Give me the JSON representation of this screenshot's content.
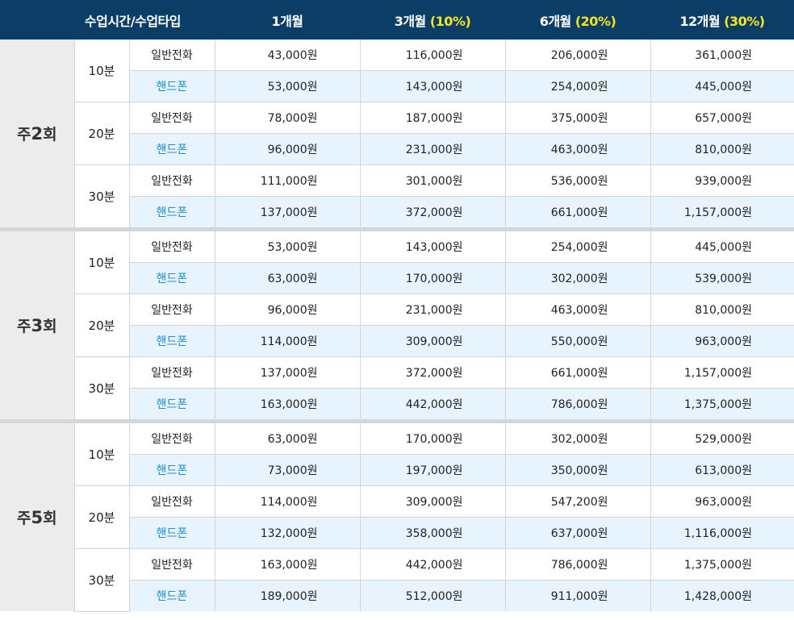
{
  "header": {
    "time_type": "수업시간/수업타입",
    "periods": [
      {
        "label": "1개월",
        "discount": ""
      },
      {
        "label": "3개월",
        "discount": "(10%)"
      },
      {
        "label": "6개월",
        "discount": "(20%)"
      },
      {
        "label": "12개월",
        "discount": "(30%)"
      }
    ]
  },
  "groups": [
    {
      "freq_prefix": "주",
      "freq_num": "2",
      "freq_suffix": "회",
      "durations": [
        {
          "label": "10분",
          "rows": [
            {
              "type": "일반전화",
              "prices": [
                "43,000원",
                "116,000원",
                "206,000원",
                "361,000원"
              ]
            },
            {
              "type": "핸드폰",
              "prices": [
                "53,000원",
                "143,000원",
                "254,000원",
                "445,000원"
              ]
            }
          ]
        },
        {
          "label": "20분",
          "rows": [
            {
              "type": "일반전화",
              "prices": [
                "78,000원",
                "187,000원",
                "375,000원",
                "657,000원"
              ]
            },
            {
              "type": "핸드폰",
              "prices": [
                "96,000원",
                "231,000원",
                "463,000원",
                "810,000원"
              ]
            }
          ]
        },
        {
          "label": "30분",
          "rows": [
            {
              "type": "일반전화",
              "prices": [
                "111,000원",
                "301,000원",
                "536,000원",
                "939,000원"
              ]
            },
            {
              "type": "핸드폰",
              "prices": [
                "137,000원",
                "372,000원",
                "661,000원",
                "1,157,000원"
              ]
            }
          ]
        }
      ]
    },
    {
      "freq_prefix": "주",
      "freq_num": "3",
      "freq_suffix": "회",
      "durations": [
        {
          "label": "10분",
          "rows": [
            {
              "type": "일반전화",
              "prices": [
                "53,000원",
                "143,000원",
                "254,000원",
                "445,000원"
              ]
            },
            {
              "type": "핸드폰",
              "prices": [
                "63,000원",
                "170,000원",
                "302,000원",
                "539,000원"
              ]
            }
          ]
        },
        {
          "label": "20분",
          "rows": [
            {
              "type": "일반전화",
              "prices": [
                "96,000원",
                "231,000원",
                "463,000원",
                "810,000원"
              ]
            },
            {
              "type": "핸드폰",
              "prices": [
                "114,000원",
                "309,000원",
                "550,000원",
                "963,000원"
              ]
            }
          ]
        },
        {
          "label": "30분",
          "rows": [
            {
              "type": "일반전화",
              "prices": [
                "137,000원",
                "372,000원",
                "661,000원",
                "1,157,000원"
              ]
            },
            {
              "type": "핸드폰",
              "prices": [
                "163,000원",
                "442,000원",
                "786,000원",
                "1,375,000원"
              ]
            }
          ]
        }
      ]
    },
    {
      "freq_prefix": "주",
      "freq_num": "5",
      "freq_suffix": "회",
      "durations": [
        {
          "label": "10분",
          "rows": [
            {
              "type": "일반전화",
              "prices": [
                "63,000원",
                "170,000원",
                "302,000원",
                "529,000원"
              ]
            },
            {
              "type": "핸드폰",
              "prices": [
                "73,000원",
                "197,000원",
                "350,000원",
                "613,000원"
              ]
            }
          ]
        },
        {
          "label": "20분",
          "rows": [
            {
              "type": "일반전화",
              "prices": [
                "114,000원",
                "309,000원",
                "547,200원",
                "963,000원"
              ]
            },
            {
              "type": "핸드폰",
              "prices": [
                "132,000원",
                "358,000원",
                "637,000원",
                "1,116,000원"
              ]
            }
          ]
        },
        {
          "label": "30분",
          "rows": [
            {
              "type": "일반전화",
              "prices": [
                "163,000원",
                "442,000원",
                "786,000원",
                "1,375,000원"
              ]
            },
            {
              "type": "핸드폰",
              "prices": [
                "189,000원",
                "512,000원",
                "911,000원",
                "1,428,000원"
              ]
            }
          ]
        }
      ]
    }
  ]
}
